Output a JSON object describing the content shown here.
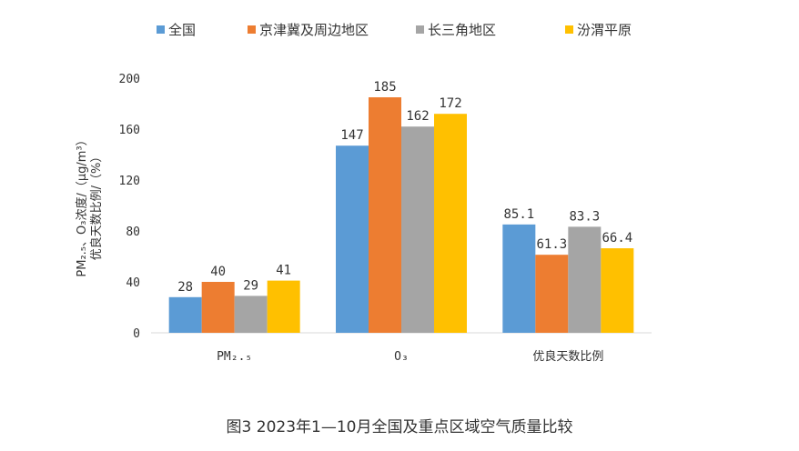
{
  "chart_data": {
    "type": "bar",
    "categories": [
      "PM₂.₅",
      "O₃",
      "优良天数比例"
    ],
    "series": [
      {
        "name": "全国",
        "values": [
          28,
          147,
          85.1
        ],
        "color": "#5B9BD5"
      },
      {
        "name": "京津冀及周边地区",
        "values": [
          40,
          185,
          61.3
        ],
        "color": "#ED7D31"
      },
      {
        "name": "长三角地区",
        "values": [
          29,
          162,
          83.3
        ],
        "color": "#A5A5A5"
      },
      {
        "name": "汾渭平原",
        "values": [
          41,
          172,
          66.4
        ],
        "color": "#FFC000"
      }
    ],
    "data_labels": [
      [
        "28",
        "147",
        "85.1"
      ],
      [
        "40",
        "185",
        "61.3"
      ],
      [
        "29",
        "162",
        "83.3"
      ],
      [
        "41",
        "172",
        "66.4"
      ]
    ],
    "ylabel_line1": "PM₂.₅、O₃浓度/（μg/m³）",
    "ylabel_line2": "优良天数比例/（%）",
    "ylim": [
      0,
      200
    ],
    "yticks": [
      0,
      40,
      80,
      120,
      160,
      200
    ],
    "grid": false,
    "legend_position": "top"
  },
  "caption": "图3  2023年1—10月全国及重点区域空气质量比较"
}
